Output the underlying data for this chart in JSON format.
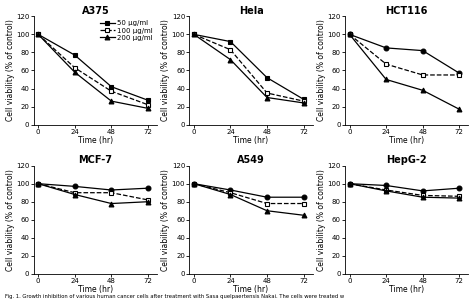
{
  "time": [
    0,
    24,
    48,
    72
  ],
  "subplots": [
    {
      "title": "A375",
      "show_legend": true,
      "series": [
        {
          "label": "50 μg/ml",
          "linestyle": "solid",
          "marker": "s",
          "filled": true,
          "values": [
            100,
            77,
            42,
            27
          ]
        },
        {
          "label": "100 μg/ml",
          "linestyle": "dashed",
          "marker": "s",
          "filled": false,
          "values": [
            100,
            63,
            37,
            22
          ]
        },
        {
          "label": "200 μg/ml",
          "linestyle": "solid",
          "marker": "^",
          "filled": true,
          "values": [
            100,
            58,
            26,
            18
          ]
        }
      ]
    },
    {
      "title": "Hela",
      "show_legend": false,
      "series": [
        {
          "label": "50 μg/ml",
          "linestyle": "solid",
          "marker": "s",
          "filled": true,
          "values": [
            100,
            92,
            52,
            28
          ]
        },
        {
          "label": "100 μg/ml",
          "linestyle": "dashed",
          "marker": "s",
          "filled": false,
          "values": [
            100,
            83,
            35,
            26
          ]
        },
        {
          "label": "200 μg/ml",
          "linestyle": "solid",
          "marker": "^",
          "filled": true,
          "values": [
            100,
            72,
            30,
            24
          ]
        }
      ]
    },
    {
      "title": "HCT116",
      "show_legend": false,
      "series": [
        {
          "label": "50 μg/ml",
          "linestyle": "solid",
          "marker": "o",
          "filled": true,
          "values": [
            100,
            85,
            82,
            57
          ]
        },
        {
          "label": "100 μg/ml",
          "linestyle": "dashed",
          "marker": "s",
          "filled": false,
          "values": [
            100,
            67,
            55,
            55
          ]
        },
        {
          "label": "200 μg/ml",
          "linestyle": "solid",
          "marker": "^",
          "filled": true,
          "values": [
            100,
            50,
            38,
            17
          ]
        }
      ]
    },
    {
      "title": "MCF-7",
      "show_legend": false,
      "series": [
        {
          "label": "50 μg/ml",
          "linestyle": "solid",
          "marker": "o",
          "filled": true,
          "values": [
            100,
            97,
            93,
            95
          ]
        },
        {
          "label": "100 μg/ml",
          "linestyle": "dashed",
          "marker": "s",
          "filled": false,
          "values": [
            100,
            90,
            90,
            82
          ]
        },
        {
          "label": "200 μg/ml",
          "linestyle": "solid",
          "marker": "^",
          "filled": true,
          "values": [
            100,
            88,
            78,
            80
          ]
        }
      ]
    },
    {
      "title": "A549",
      "show_legend": false,
      "series": [
        {
          "label": "50 μg/ml",
          "linestyle": "solid",
          "marker": "o",
          "filled": true,
          "values": [
            100,
            93,
            85,
            85
          ]
        },
        {
          "label": "100 μg/ml",
          "linestyle": "dashed",
          "marker": "s",
          "filled": false,
          "values": [
            100,
            90,
            78,
            78
          ]
        },
        {
          "label": "200 μg/ml",
          "linestyle": "solid",
          "marker": "^",
          "filled": true,
          "values": [
            100,
            88,
            70,
            65
          ]
        }
      ]
    },
    {
      "title": "HepG-2",
      "show_legend": false,
      "series": [
        {
          "label": "50 μg/ml",
          "linestyle": "solid",
          "marker": "o",
          "filled": true,
          "values": [
            100,
            98,
            92,
            95
          ]
        },
        {
          "label": "100 μg/ml",
          "linestyle": "dashed",
          "marker": "s",
          "filled": false,
          "values": [
            100,
            93,
            87,
            86
          ]
        },
        {
          "label": "200 μg/ml",
          "linestyle": "solid",
          "marker": "^",
          "filled": true,
          "values": [
            100,
            92,
            85,
            84
          ]
        }
      ]
    }
  ],
  "xlabel": "Time (hr)",
  "ylabel": "Cell viability (% of control)",
  "ylim": [
    0,
    120
  ],
  "yticks": [
    0,
    20,
    40,
    60,
    80,
    100,
    120
  ],
  "xticks": [
    0,
    24,
    48,
    72
  ],
  "color": "black",
  "markersize": 3.5,
  "linewidth": 0.9,
  "title_fontsize": 7,
  "label_fontsize": 5.5,
  "tick_fontsize": 5,
  "legend_fontsize": 5.0,
  "caption": "Fig. 1. Growth inhibition of various human cancer cells after treatment with Sasa quelpaertensis Nakai. The cells were treated w"
}
